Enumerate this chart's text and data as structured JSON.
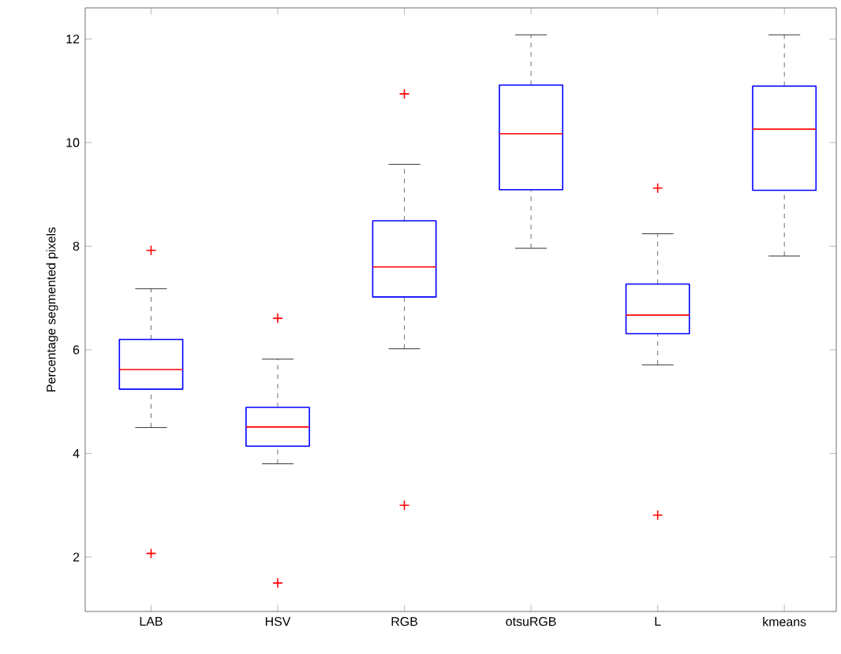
{
  "chart_data": {
    "type": "box",
    "ylabel": "Percentage segmented pixels",
    "categories": [
      "LAB",
      "HSV",
      "RGB",
      "otsuRGB",
      "L",
      "kmeans"
    ],
    "boxes": [
      {
        "low": 4.5,
        "q1": 5.24,
        "median": 5.62,
        "q3": 6.2,
        "high": 7.18,
        "outliers": [
          7.92,
          2.07
        ]
      },
      {
        "low": 3.8,
        "q1": 4.14,
        "median": 4.51,
        "q3": 4.89,
        "high": 5.82,
        "outliers": [
          6.61,
          1.5
        ]
      },
      {
        "low": 6.02,
        "q1": 7.02,
        "median": 7.6,
        "q3": 8.49,
        "high": 9.58,
        "outliers": [
          10.94,
          3.0
        ]
      },
      {
        "low": 7.96,
        "q1": 9.09,
        "median": 10.17,
        "q3": 11.11,
        "high": 12.08
      },
      {
        "low": 5.71,
        "q1": 6.31,
        "median": 6.67,
        "q3": 7.27,
        "high": 8.24,
        "outliers": [
          9.12,
          2.81
        ]
      },
      {
        "low": 7.81,
        "q1": 9.08,
        "median": 10.26,
        "q3": 11.09,
        "high": 12.08
      }
    ],
    "ylim": [
      0.95,
      12.6
    ],
    "yticks": [
      2,
      4,
      6,
      8,
      10,
      12
    ]
  }
}
